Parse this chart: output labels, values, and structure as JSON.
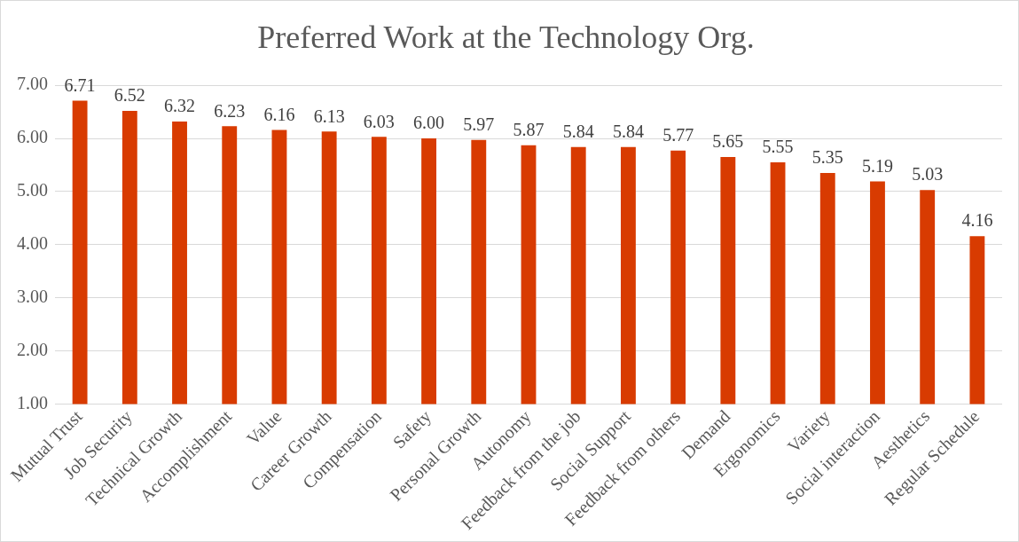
{
  "chart_data": {
    "type": "bar",
    "title": "Preferred Work at the Technology Org.",
    "categories": [
      "Mutual Trust",
      "Job Security",
      "Technical Growth",
      "Accomplishment",
      "Value",
      "Career Growth",
      "Compensation",
      "Safety",
      "Personal Growth",
      "Autonomy",
      "Feedback from the job",
      "Social Support",
      "Feedback from others",
      "Demand",
      "Ergonomics",
      "Variety",
      "Social interaction",
      "Aesthetics",
      "Regular Schedule"
    ],
    "values": [
      6.71,
      6.52,
      6.32,
      6.23,
      6.16,
      6.13,
      6.03,
      6.0,
      5.97,
      5.87,
      5.84,
      5.84,
      5.77,
      5.65,
      5.55,
      5.35,
      5.19,
      5.03,
      4.16
    ],
    "value_labels": [
      "6.71",
      "6.52",
      "6.32",
      "6.23",
      "6.16",
      "6.13",
      "6.03",
      "6.00",
      "5.97",
      "5.87",
      "5.84",
      "5.84",
      "5.77",
      "5.65",
      "5.55",
      "5.35",
      "5.19",
      "5.03",
      "4.16"
    ],
    "color": "#d83b01",
    "ylim": [
      1,
      7
    ],
    "yticks": [
      {
        "value": 1,
        "label": "1.00"
      },
      {
        "value": 2,
        "label": "2.00"
      },
      {
        "value": 3,
        "label": "3.00"
      },
      {
        "value": 4,
        "label": "4.00"
      },
      {
        "value": 5,
        "label": "5.00"
      },
      {
        "value": 6,
        "label": "6.00"
      },
      {
        "value": 7,
        "label": "7.00"
      }
    ],
    "grid": "y",
    "legend": false
  }
}
